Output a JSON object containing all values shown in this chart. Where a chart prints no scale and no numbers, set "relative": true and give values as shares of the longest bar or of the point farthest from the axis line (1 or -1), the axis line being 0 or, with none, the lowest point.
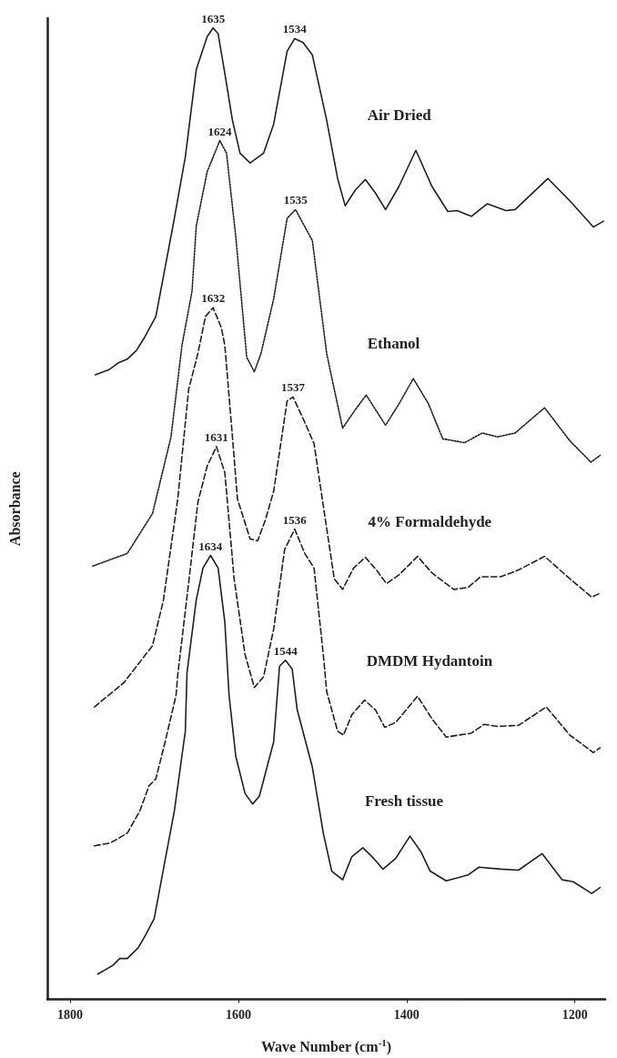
{
  "chart_data": {
    "type": "line",
    "xlabel": "Wave Number (cm$^{-1}$)",
    "ylabel": "Absorbance",
    "relative": true,
    "xlim": [
      1827,
      1164
    ],
    "xticks": [
      1800,
      1600,
      1400,
      1200
    ],
    "grid": false,
    "legend": false,
    "marker": "none",
    "series": [
      {
        "name": "Air Dried",
        "color": "#231f20",
        "line_style": "solid",
        "x": [
          1770,
          1754,
          1743,
          1732,
          1721,
          1711,
          1698,
          1676,
          1663,
          1650,
          1637,
          1630,
          1624,
          1616,
          1607,
          1598,
          1586,
          1570,
          1558,
          1542,
          1533,
          1523,
          1512,
          1495,
          1482,
          1473,
          1461,
          1449,
          1437,
          1425,
          1409,
          1389,
          1370,
          1351,
          1340,
          1323,
          1304,
          1282,
          1271,
          1232,
          1206,
          1178,
          1166
        ],
        "values": [
          0.643,
          0.648,
          0.655,
          0.659,
          0.668,
          0.682,
          0.703,
          0.804,
          0.867,
          0.957,
          0.991,
          1.0,
          0.994,
          0.953,
          0.905,
          0.871,
          0.861,
          0.871,
          0.901,
          0.976,
          0.989,
          0.985,
          0.972,
          0.905,
          0.845,
          0.817,
          0.833,
          0.844,
          0.83,
          0.813,
          0.837,
          0.874,
          0.837,
          0.811,
          0.812,
          0.806,
          0.819,
          0.812,
          0.813,
          0.845,
          0.822,
          0.795,
          0.801
        ]
      },
      {
        "name": "Ethanol",
        "color": "#231f20",
        "line_style": "dotted",
        "x": [
          1773,
          1732,
          1702,
          1680,
          1667,
          1655,
          1650,
          1637,
          1622,
          1614,
          1603,
          1590,
          1581,
          1573,
          1558,
          1542,
          1532,
          1512,
          1495,
          1486,
          1476,
          1461,
          1448,
          1425,
          1409,
          1392,
          1374,
          1357,
          1331,
          1310,
          1292,
          1271,
          1236,
          1206,
          1181,
          1170
        ],
        "values": [
          0.446,
          0.459,
          0.5,
          0.579,
          0.673,
          0.729,
          0.796,
          0.852,
          0.884,
          0.871,
          0.785,
          0.661,
          0.646,
          0.665,
          0.721,
          0.804,
          0.813,
          0.781,
          0.665,
          0.628,
          0.588,
          0.607,
          0.622,
          0.591,
          0.613,
          0.639,
          0.613,
          0.577,
          0.573,
          0.583,
          0.579,
          0.583,
          0.609,
          0.575,
          0.553,
          0.56
        ]
      },
      {
        "name": "4% Formaldehyde",
        "color": "#231f20",
        "line_style": "dashed",
        "x": [
          1771,
          1736,
          1702,
          1689,
          1672,
          1659,
          1648,
          1639,
          1630,
          1620,
          1616,
          1607,
          1601,
          1586,
          1577,
          1568,
          1558,
          1542,
          1535,
          1521,
          1510,
          1499,
          1486,
          1476,
          1463,
          1449,
          1435,
          1424,
          1409,
          1387,
          1370,
          1344,
          1327,
          1312,
          1288,
          1267,
          1236,
          1206,
          1180,
          1170
        ],
        "values": [
          0.301,
          0.326,
          0.364,
          0.411,
          0.515,
          0.628,
          0.665,
          0.703,
          0.712,
          0.691,
          0.673,
          0.579,
          0.515,
          0.474,
          0.472,
          0.493,
          0.523,
          0.616,
          0.62,
          0.594,
          0.572,
          0.508,
          0.433,
          0.422,
          0.444,
          0.455,
          0.441,
          0.428,
          0.437,
          0.456,
          0.439,
          0.422,
          0.424,
          0.435,
          0.435,
          0.442,
          0.456,
          0.433,
          0.414,
          0.418
        ]
      },
      {
        "name": "DMDM Hydantoin",
        "color": "#231f20",
        "line_style": "dashed",
        "x": [
          1771,
          1752,
          1732,
          1717,
          1706,
          1698,
          1687,
          1674,
          1672,
          1659,
          1648,
          1637,
          1626,
          1616,
          1605,
          1592,
          1581,
          1570,
          1558,
          1545,
          1533,
          1521,
          1510,
          1499,
          1495,
          1482,
          1475,
          1465,
          1450,
          1437,
          1426,
          1413,
          1387,
          1370,
          1353,
          1323,
          1308,
          1292,
          1267,
          1234,
          1206,
          1178,
          1170
        ],
        "values": [
          0.158,
          0.161,
          0.171,
          0.194,
          0.22,
          0.227,
          0.265,
          0.313,
          0.334,
          0.429,
          0.512,
          0.549,
          0.569,
          0.542,
          0.433,
          0.355,
          0.321,
          0.332,
          0.381,
          0.463,
          0.484,
          0.459,
          0.444,
          0.355,
          0.317,
          0.276,
          0.272,
          0.293,
          0.308,
          0.298,
          0.28,
          0.285,
          0.312,
          0.289,
          0.27,
          0.274,
          0.283,
          0.281,
          0.282,
          0.301,
          0.272,
          0.254,
          0.259
        ]
      },
      {
        "name": "Fresh tissue",
        "color": "#231f20",
        "line_style": "solid",
        "x": [
          1767,
          1749,
          1741,
          1732,
          1719,
          1711,
          1700,
          1689,
          1676,
          1663,
          1661,
          1650,
          1642,
          1633,
          1624,
          1616,
          1611,
          1603,
          1592,
          1583,
          1575,
          1558,
          1551,
          1544,
          1536,
          1530,
          1512,
          1499,
          1489,
          1476,
          1465,
          1452,
          1439,
          1428,
          1413,
          1396,
          1383,
          1372,
          1353,
          1327,
          1314,
          1288,
          1267,
          1239,
          1215,
          1202,
          1180,
          1170
        ],
        "values": [
          0.026,
          0.035,
          0.042,
          0.042,
          0.053,
          0.065,
          0.083,
          0.134,
          0.194,
          0.276,
          0.336,
          0.411,
          0.444,
          0.457,
          0.444,
          0.388,
          0.313,
          0.25,
          0.212,
          0.201,
          0.209,
          0.265,
          0.343,
          0.349,
          0.34,
          0.298,
          0.239,
          0.171,
          0.132,
          0.123,
          0.147,
          0.156,
          0.145,
          0.134,
          0.145,
          0.168,
          0.152,
          0.132,
          0.122,
          0.128,
          0.136,
          0.134,
          0.133,
          0.15,
          0.123,
          0.121,
          0.109,
          0.115
        ]
      }
    ],
    "annotations": [
      {
        "text": "1635",
        "x": 1630,
        "y": 1.0
      },
      {
        "text": "1534",
        "x": 1533,
        "y": 0.989
      },
      {
        "text": "1624",
        "x": 1622,
        "y": 0.884
      },
      {
        "text": "1535",
        "x": 1532,
        "y": 0.813
      },
      {
        "text": "1632",
        "x": 1630,
        "y": 0.712
      },
      {
        "text": "1537",
        "x": 1535,
        "y": 0.62
      },
      {
        "text": "1631",
        "x": 1626,
        "y": 0.569
      },
      {
        "text": "1536",
        "x": 1533,
        "y": 0.484
      },
      {
        "text": "1634",
        "x": 1633,
        "y": 0.457
      },
      {
        "text": "1544",
        "x": 1544,
        "y": 0.349
      }
    ]
  }
}
